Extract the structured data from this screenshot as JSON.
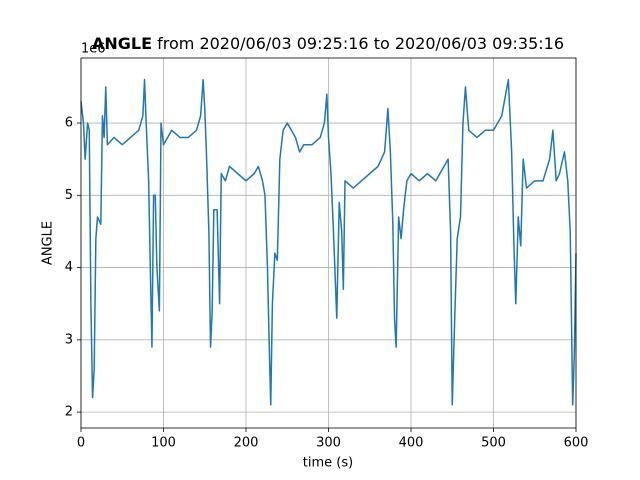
{
  "chart_data": {
    "type": "line",
    "title_bold": "ANGLE",
    "title": " from 2020/06/03 09:25:16 to 2020/06/03 09:35:16",
    "x_label": "time (s)",
    "y_label": "ANGLE",
    "y_offset_label": "1e6",
    "x": [
      0,
      3,
      5,
      8,
      10,
      12,
      14,
      16,
      18,
      20,
      24,
      26,
      28,
      30,
      32,
      40,
      50,
      60,
      70,
      75,
      77,
      79,
      82,
      84,
      86,
      88,
      90,
      92,
      95,
      97,
      100,
      110,
      120,
      130,
      140,
      145,
      148,
      150,
      152,
      155,
      157,
      159,
      161,
      165,
      168,
      170,
      175,
      180,
      190,
      200,
      210,
      215,
      220,
      223,
      226,
      228,
      230,
      232,
      235,
      238,
      241,
      245,
      250,
      255,
      260,
      265,
      270,
      280,
      290,
      295,
      298,
      300,
      303,
      306,
      308,
      310,
      313,
      316,
      318,
      320,
      330,
      340,
      350,
      360,
      368,
      372,
      375,
      378,
      380,
      382,
      385,
      388,
      391,
      395,
      400,
      410,
      420,
      430,
      440,
      445,
      448,
      450,
      453,
      456,
      460,
      463,
      466,
      470,
      480,
      490,
      500,
      510,
      518,
      522,
      525,
      527,
      530,
      533,
      536,
      540,
      550,
      560,
      568,
      572,
      576,
      580,
      586,
      590,
      593,
      596,
      598,
      600
    ],
    "series": [
      {
        "name": "ANGLE",
        "color": "#1f77b4",
        "values": [
          6.3,
          6.0,
          5.5,
          6.0,
          5.9,
          3.5,
          2.2,
          2.6,
          4.4,
          4.7,
          4.6,
          6.1,
          5.8,
          6.5,
          5.7,
          5.8,
          5.7,
          5.8,
          5.9,
          6.1,
          6.6,
          6.0,
          5.2,
          4.0,
          2.9,
          5.0,
          5.0,
          4.0,
          3.4,
          6.0,
          5.7,
          5.9,
          5.8,
          5.8,
          5.9,
          6.1,
          6.6,
          6.2,
          5.6,
          4.5,
          2.9,
          3.4,
          4.8,
          4.8,
          3.5,
          5.3,
          5.2,
          5.4,
          5.3,
          5.2,
          5.3,
          5.4,
          5.2,
          5.0,
          4.0,
          3.0,
          2.1,
          3.5,
          4.2,
          4.1,
          5.5,
          5.9,
          6.0,
          5.9,
          5.8,
          5.6,
          5.7,
          5.7,
          5.8,
          6.0,
          6.4,
          5.8,
          5.3,
          4.5,
          3.9,
          3.3,
          4.9,
          4.5,
          3.7,
          5.2,
          5.1,
          5.2,
          5.3,
          5.4,
          5.6,
          6.2,
          5.6,
          4.6,
          3.3,
          2.9,
          4.7,
          4.4,
          4.8,
          5.2,
          5.3,
          5.2,
          5.3,
          5.2,
          5.4,
          5.5,
          4.5,
          2.1,
          3.3,
          4.4,
          4.7,
          6.0,
          6.5,
          5.9,
          5.8,
          5.9,
          5.9,
          6.1,
          6.6,
          5.6,
          4.2,
          3.5,
          4.7,
          4.3,
          5.5,
          5.1,
          5.2,
          5.2,
          5.5,
          5.9,
          5.2,
          5.3,
          5.6,
          5.2,
          4.5,
          2.1,
          2.8,
          4.2
        ]
      }
    ],
    "xlim": [
      0,
      600
    ],
    "xticks": [
      0,
      100,
      200,
      300,
      400,
      500,
      600
    ],
    "ylim": [
      1.78,
      6.9
    ],
    "yticks": [
      2,
      3,
      4,
      5,
      6
    ],
    "grid": true
  }
}
